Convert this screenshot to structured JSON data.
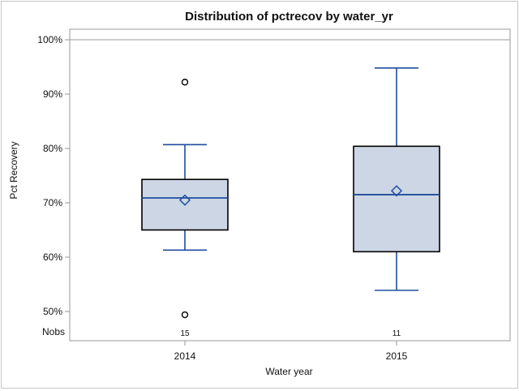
{
  "chart_data": {
    "type": "box",
    "title": "Distribution of pctrecov by water_yr",
    "xlabel": "Water year",
    "ylabel": "Pct Recovery",
    "nobs_label": "Nobs",
    "y_axis": {
      "min": 50,
      "max": 100,
      "tick_step": 10,
      "ticks": [
        50,
        60,
        70,
        80,
        90,
        100
      ],
      "tick_labels": [
        "50%",
        "60%",
        "70%",
        "80%",
        "90%",
        "100%"
      ],
      "unit": "%"
    },
    "reference_line": 100,
    "grid": false,
    "legend": "none",
    "categories": [
      "2014",
      "2015"
    ],
    "series": [
      {
        "category": "2014",
        "nobs": "15",
        "whisker_low": 61.3,
        "q1": 65.0,
        "median": 70.9,
        "q3": 74.3,
        "whisker_high": 80.7,
        "mean": 70.5,
        "outliers": [
          92.2,
          49.4
        ]
      },
      {
        "category": "2015",
        "nobs": "11",
        "whisker_low": 53.9,
        "q1": 61.0,
        "median": 71.5,
        "q3": 80.4,
        "whisker_high": 94.8,
        "mean": 72.2,
        "outliers": []
      }
    ],
    "colors": {
      "box_fill": "#ccd6e4",
      "box_stroke": "#000000",
      "line": "#1f4d9e",
      "frame": "#999999",
      "outlier_stroke": "#000000",
      "text": "#111111"
    }
  }
}
